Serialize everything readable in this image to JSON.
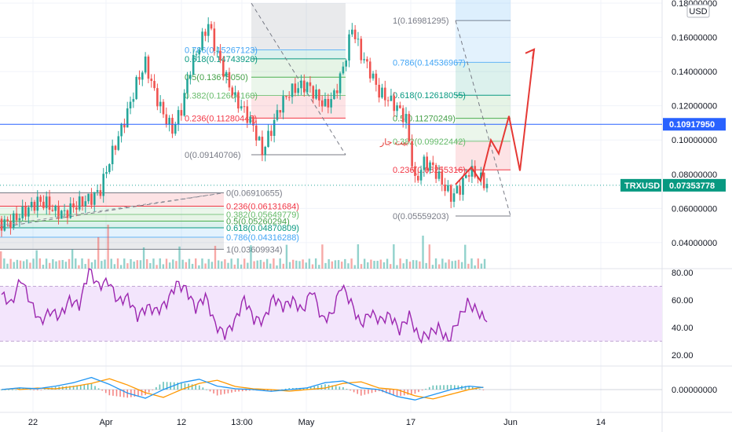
{
  "currency_badge": "USD",
  "symbol_tag": "TRXUSD",
  "colors": {
    "up": "#26a69a",
    "down": "#ef5350",
    "rsi_line": "#9c27b0",
    "rsi_band": "#f3e5fc",
    "hline": "#2962ff",
    "projection": "#e53935",
    "macd_line": "#2196f3",
    "signal_line": "#ff9800"
  },
  "chart_data": [
    {
      "type": "line",
      "panel": "price",
      "title": "",
      "xlabel": "",
      "ylabel": "",
      "x_tick_labels": [
        "22",
        "Apr",
        "12",
        "13:00",
        "May",
        "17",
        "Jun",
        "14"
      ],
      "y_tick_labels": [
        "0.18000000",
        "0.16000000",
        "0.14000000",
        "0.12000000",
        "0.10000000",
        "0.08000000",
        "0.06000000",
        "0.04000000"
      ],
      "ylim": [
        0.028,
        0.182
      ],
      "series": [
        {
          "values": [
            0.051,
            0.052,
            0.056,
            0.06,
            0.064,
            0.063,
            0.058,
            0.057,
            0.061,
            0.064,
            0.066,
            0.071,
            0.088,
            0.102,
            0.116,
            0.133,
            0.145,
            0.128,
            0.115,
            0.106,
            0.118,
            0.142,
            0.155,
            0.168,
            0.15,
            0.136,
            0.124,
            0.117,
            0.108,
            0.093,
            0.106,
            0.12,
            0.128,
            0.131,
            0.132,
            0.126,
            0.12,
            0.126,
            0.142,
            0.166,
            0.15,
            0.14,
            0.128,
            0.124,
            0.119,
            0.112,
            0.075,
            0.087,
            0.084,
            0.075,
            0.067,
            0.072,
            0.082,
            0.079,
            0.0735
          ]
        }
      ],
      "current_price_label": "0.07353778",
      "horizontal_line_label": "0.10917950",
      "fib_retracements": [
        {
          "levels": [
            {
              "label": "0.786(0.15267123)",
              "value": 0.15267123
            },
            {
              "label": "0.618(0.14743920)",
              "value": 0.1474392
            },
            {
              "label": "0.5(0.13675050)",
              "value": 0.1367505
            },
            {
              "label": "0.382(0.12604160)",
              "value": 0.1260416
            },
            {
              "label": "0.236(0.11280445)",
              "value": 0.11280445
            },
            {
              "label": "0(0.09140706)",
              "value": 0.09140706
            }
          ]
        },
        {
          "levels": [
            {
              "label": "0(0.06910655)",
              "value": 0.06910655
            },
            {
              "label": "0.236(0.06131684)",
              "value": 0.06131684
            },
            {
              "label": "0.382(0.05649779)",
              "value": 0.05649779
            },
            {
              "label": "0.5(0.05260294)",
              "value": 0.05260294
            },
            {
              "label": "0.618(0.04870809)",
              "value": 0.04870809
            },
            {
              "label": "0.786(0.04316288)",
              "value": 0.04316288
            },
            {
              "label": "1(0.03609934)",
              "value": 0.03609934
            }
          ]
        },
        {
          "levels": [
            {
              "label": "1(0.16981295)",
              "value": 0.16981295
            },
            {
              "label": "0.786(0.14536967)",
              "value": 0.14536967
            },
            {
              "label": "0.618(0.12618055)",
              "value": 0.12618055
            },
            {
              "label": "0.5(0.11270249)",
              "value": 0.11270249
            },
            {
              "label": "0.382(0.09922442)",
              "value": 0.09922442
            },
            {
              "label": "0.236(0.08255316)",
              "value": 0.08255316
            },
            {
              "label": "0(0.05559203)",
              "value": 0.05559203
            }
          ]
        }
      ],
      "annotation_text": "بیت جار",
      "projection_path": [
        0.074,
        0.084,
        0.076,
        0.1,
        0.092,
        0.114,
        0.082,
        0.153
      ]
    },
    {
      "type": "line",
      "panel": "rsi",
      "title": "",
      "y_tick_labels": [
        "80.00",
        "60.00",
        "40.00",
        "20.00"
      ],
      "ylim": [
        15,
        85
      ],
      "band": [
        30,
        70
      ],
      "values": [
        64,
        57,
        76,
        58,
        44,
        52,
        48,
        60,
        56,
        82,
        70,
        74,
        59,
        62,
        48,
        55,
        52,
        58,
        72,
        68,
        54,
        63,
        42,
        35,
        44,
        61,
        46,
        45,
        62,
        55,
        60,
        52,
        68,
        46,
        49,
        71,
        58,
        42,
        51,
        45,
        49,
        38,
        49,
        32,
        35,
        40,
        30,
        45,
        58,
        52,
        44
      ]
    },
    {
      "type": "line",
      "panel": "macd",
      "title": "",
      "y_tick_labels": [
        "0.00000000"
      ],
      "values": [
        0.0,
        0.001,
        0.0005,
        0.002,
        0.004,
        0.007,
        0.003,
        -0.002,
        -0.005,
        0.0,
        0.004,
        0.006,
        0.002,
        0.0005,
        0.0,
        -0.001,
        0.0,
        0.001,
        0.004,
        0.005,
        0.001,
        0.0,
        -0.004,
        -0.006,
        -0.003,
        0.0,
        0.002,
        0.001
      ]
    }
  ]
}
